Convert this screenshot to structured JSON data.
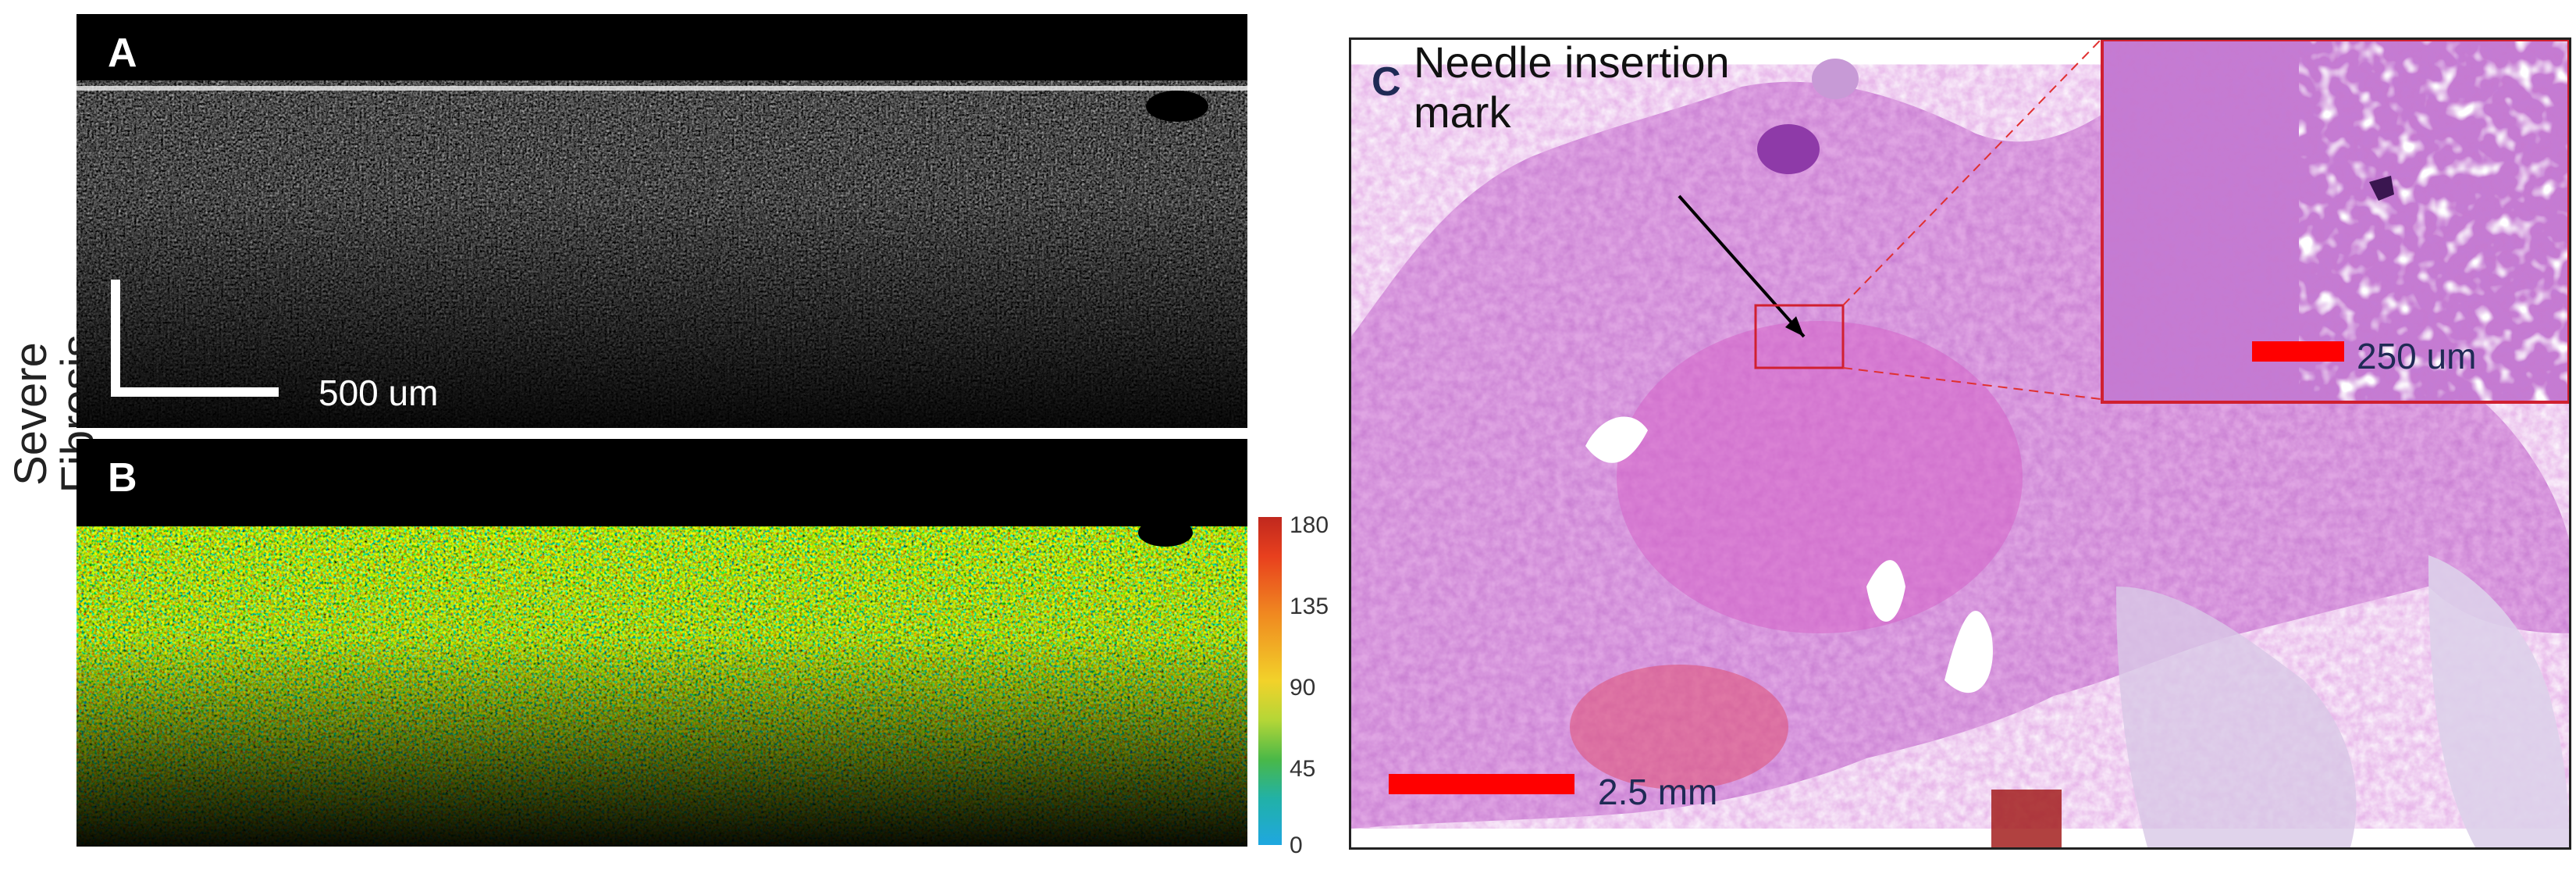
{
  "figure": {
    "row_label": "Severe Fibrosis",
    "panel_a": {
      "letter": "A",
      "scale_label": "500 um"
    },
    "panel_b": {
      "letter": "B",
      "colorbar": {
        "ticks": [
          "180",
          "135",
          "90",
          "45",
          "0"
        ]
      }
    },
    "panel_c": {
      "letter": "C",
      "annotation_line1": "Needle insertion",
      "annotation_line2": "mark",
      "scale_label": "2.5 mm",
      "inset_scale_label": "250 um"
    }
  },
  "colors": {
    "scale_bar_red": "#ff0000",
    "inset_border": "#d02030",
    "tissue_pink": "#c86ccd"
  }
}
